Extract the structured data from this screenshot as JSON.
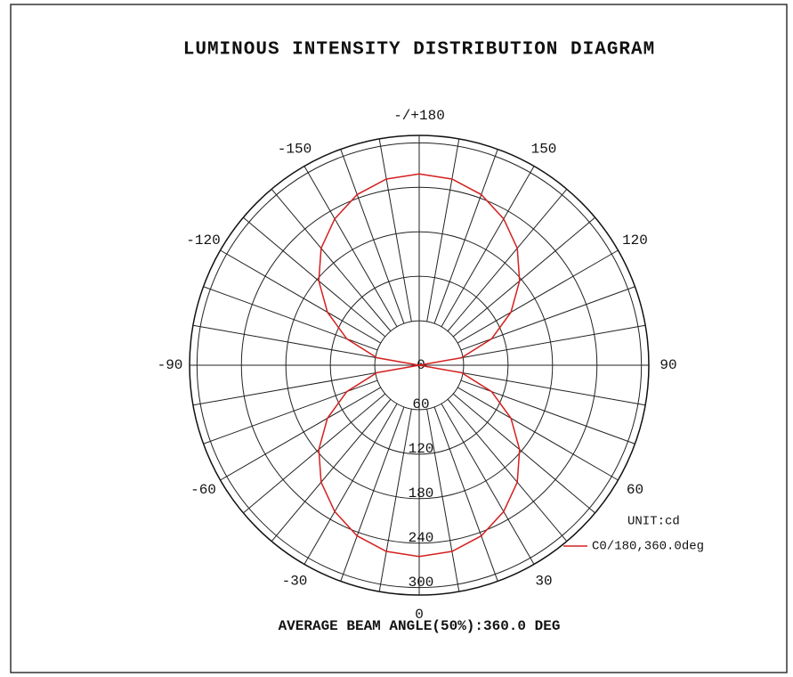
{
  "chart_data": {
    "type": "polar",
    "title": "LUMINOUS INTENSITY DISTRIBUTION DIAGRAM",
    "unit_label": "UNIT:cd",
    "footer": "AVERAGE BEAM ANGLE(50%):360.0 DEG",
    "angles": [
      -180,
      -170,
      -160,
      -150,
      -140,
      -130,
      -120,
      -110,
      -100,
      -90,
      -80,
      -70,
      -60,
      -50,
      -40,
      -30,
      -20,
      -10,
      0,
      10,
      20,
      30,
      40,
      50,
      60,
      70,
      80,
      90,
      100,
      110,
      120,
      130,
      140,
      150,
      160,
      170,
      180
    ],
    "series": [
      {
        "name": "C0/180,360.0deg",
        "color": "#d42020",
        "values": [
          258,
          255,
          245,
          228,
          206,
          177,
          143,
          104,
          58,
          0,
          58,
          104,
          143,
          177,
          206,
          228,
          245,
          255,
          258,
          255,
          245,
          228,
          206,
          177,
          143,
          104,
          58,
          0,
          58,
          104,
          143,
          177,
          206,
          228,
          245,
          255,
          258
        ]
      }
    ],
    "rlim": [
      0,
      310
    ],
    "rticks": [
      0,
      60,
      120,
      180,
      240,
      300
    ],
    "thetaticks": [
      {
        "value": 180,
        "label": "-/+180"
      },
      -150,
      -120,
      -90,
      -60,
      -30,
      0,
      30,
      60,
      90,
      120,
      150
    ]
  }
}
